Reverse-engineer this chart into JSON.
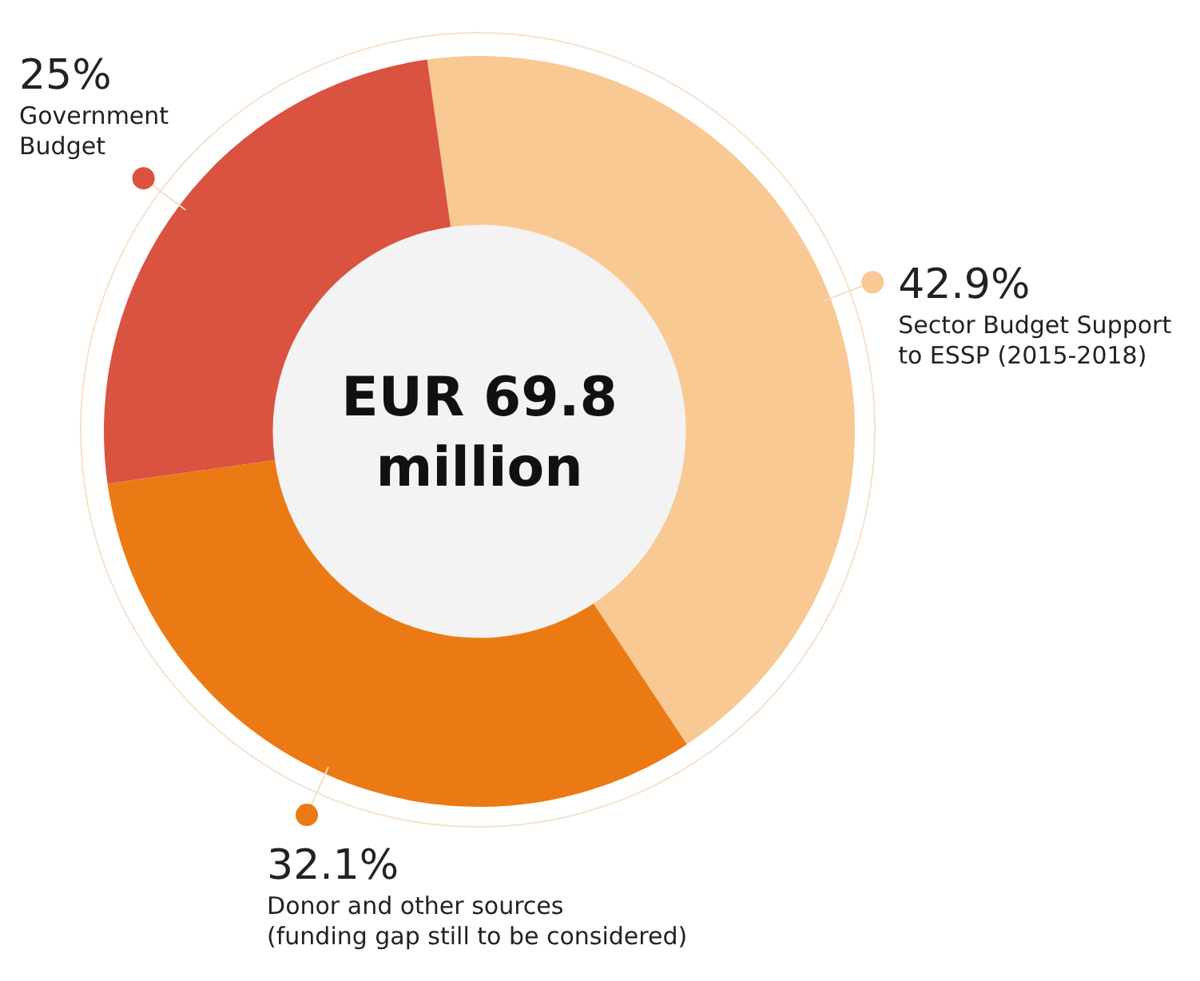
{
  "chart_data": {
    "type": "donut",
    "categories": [
      "Sector Budget Support to ESSP (2015-2018)",
      "Donor and other sources (funding gap still to be considered)",
      "Government Budget"
    ],
    "values": [
      42.9,
      32.1,
      25
    ],
    "colors": [
      "#f9c993",
      "#ec7a14",
      "#d95340"
    ],
    "value_labels": [
      "42.9%",
      "32.1%",
      "25%"
    ],
    "legend": false,
    "annotations": [
      "EUR 69.8 million"
    ]
  }
}
